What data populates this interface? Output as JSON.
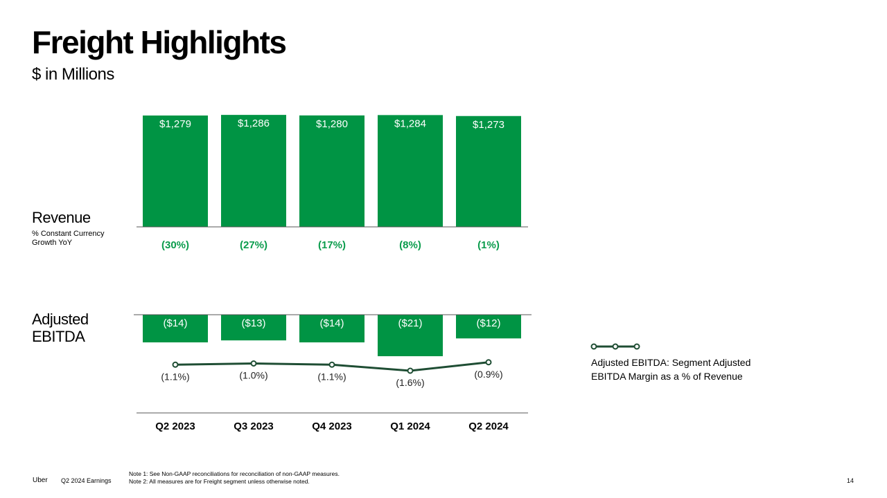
{
  "slide": {
    "title": "Freight Highlights",
    "subtitle": "$ in Millions",
    "revenue_label": "Revenue",
    "revenue_sublabel": "% Constant Currency Growth YoY",
    "ebitda_label": "Adjusted EBITDA",
    "legend_text": "Adjusted EBITDA: Segment Adjusted EBITDA Margin as a % of Revenue",
    "footer_brand": "Uber",
    "footer_report": "Q2 2024 Earnings",
    "note1": "Note 1: See Non-GAAP reconciliations for reconciliation of non-GAAP measures.",
    "note2": "Note 2: All measures are for Freight segment unless otherwise noted.",
    "page_number": "14"
  },
  "colors": {
    "bar_green": "#009444",
    "growth_green": "#0a9c4c",
    "line_dark": "#1e4d33",
    "axis": "#555555"
  },
  "chart_data": {
    "type": "bar",
    "categories": [
      "Q2 2023",
      "Q3 2023",
      "Q4 2023",
      "Q1 2024",
      "Q2 2024"
    ],
    "revenue": {
      "values": [
        1279,
        1286,
        1280,
        1284,
        1273
      ],
      "labels": [
        "$1,279",
        "$1,286",
        "$1,280",
        "$1,284",
        "$1,273"
      ]
    },
    "growth_yoy": {
      "values": [
        -30,
        -27,
        -17,
        -8,
        -1
      ],
      "labels": [
        "(30%)",
        "(27%)",
        "(17%)",
        "(8%)",
        "(1%)"
      ]
    },
    "adjusted_ebitda": {
      "values": [
        -14,
        -13,
        -14,
        -21,
        -12
      ],
      "labels": [
        "($14)",
        "($13)",
        "($14)",
        "($21)",
        "($12)"
      ]
    },
    "ebitda_margin": {
      "values": [
        -1.1,
        -1.0,
        -1.1,
        -1.6,
        -0.9
      ],
      "labels": [
        "(1.1%)",
        "(1.0%)",
        "(1.1%)",
        "(1.6%)",
        "(0.9%)"
      ]
    }
  }
}
